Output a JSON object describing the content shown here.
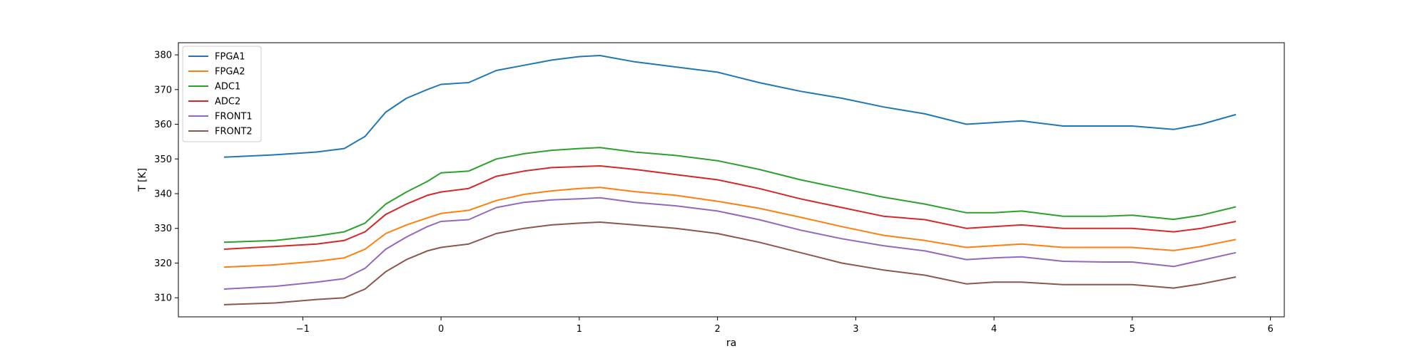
{
  "chart_data": {
    "type": "line",
    "title": "",
    "xlabel": "ra",
    "ylabel": "T [K]",
    "xlim": [
      -1.9,
      6.1
    ],
    "ylim": [
      304.5,
      383.5
    ],
    "xticks": [
      -1,
      0,
      1,
      2,
      3,
      4,
      5,
      6
    ],
    "xtick_labels": [
      "−1",
      "0",
      "1",
      "2",
      "3",
      "4",
      "5",
      "6"
    ],
    "yticks": [
      310,
      320,
      330,
      340,
      350,
      360,
      370,
      380
    ],
    "ytick_labels": [
      "310",
      "320",
      "330",
      "340",
      "350",
      "360",
      "370",
      "380"
    ],
    "grid": false,
    "legend_position": "upper-left",
    "x": [
      -1.57,
      -1.2,
      -0.9,
      -0.7,
      -0.55,
      -0.4,
      -0.25,
      -0.1,
      0,
      0.2,
      0.4,
      0.6,
      0.8,
      1.0,
      1.15,
      1.4,
      1.7,
      2.0,
      2.3,
      2.6,
      2.9,
      3.2,
      3.5,
      3.8,
      4.0,
      4.2,
      4.5,
      4.8,
      5.0,
      5.3,
      5.5,
      5.75
    ],
    "series": [
      {
        "name": "FPGA1",
        "color": "#1f77b4",
        "values": [
          350.5,
          351.2,
          352.0,
          353.0,
          356.5,
          363.5,
          367.5,
          370.0,
          371.5,
          372.0,
          375.5,
          377.0,
          378.5,
          379.5,
          379.8,
          378.0,
          376.5,
          375.0,
          372.0,
          369.5,
          367.5,
          365.0,
          363.0,
          360.0,
          360.5,
          361.0,
          359.5,
          359.5,
          359.5,
          358.5,
          360.0,
          362.8
        ]
      },
      {
        "name": "FPGA2",
        "color": "#ff7f0e",
        "values": [
          318.8,
          319.5,
          320.5,
          321.5,
          324.0,
          328.5,
          331.0,
          333.0,
          334.3,
          335.2,
          338.0,
          339.8,
          340.8,
          341.5,
          341.8,
          340.6,
          339.5,
          337.8,
          335.8,
          333.2,
          330.5,
          328.0,
          326.5,
          324.5,
          325.0,
          325.5,
          324.5,
          324.5,
          324.5,
          323.6,
          324.8,
          326.8
        ]
      },
      {
        "name": "ADC1",
        "color": "#2ca02c",
        "values": [
          326.0,
          326.5,
          327.8,
          329.0,
          331.5,
          337.0,
          340.5,
          343.5,
          346.0,
          346.5,
          350.0,
          351.5,
          352.5,
          353.0,
          353.3,
          352.0,
          351.0,
          349.5,
          347.0,
          344.0,
          341.5,
          339.0,
          337.0,
          334.5,
          334.5,
          335.0,
          333.5,
          333.5,
          333.8,
          332.6,
          333.8,
          336.2
        ]
      },
      {
        "name": "ADC2",
        "color": "#d62728",
        "values": [
          324.0,
          324.8,
          325.5,
          326.5,
          329.0,
          334.0,
          337.0,
          339.5,
          340.5,
          341.5,
          345.0,
          346.5,
          347.5,
          347.8,
          348.0,
          347.0,
          345.5,
          344.0,
          341.5,
          338.5,
          336.0,
          333.5,
          332.5,
          330.0,
          330.5,
          331.0,
          330.0,
          330.0,
          330.0,
          329.0,
          330.0,
          332.0
        ]
      },
      {
        "name": "FRONT1",
        "color": "#9467bd",
        "values": [
          312.5,
          313.3,
          314.5,
          315.5,
          318.5,
          324.0,
          327.5,
          330.5,
          332.0,
          332.5,
          336.0,
          337.5,
          338.2,
          338.5,
          338.8,
          337.5,
          336.5,
          335.0,
          332.5,
          329.5,
          327.0,
          325.0,
          323.5,
          321.0,
          321.5,
          321.8,
          320.5,
          320.3,
          320.3,
          319.0,
          320.8,
          323.0
        ]
      },
      {
        "name": "FRONT2",
        "color": "#8c564b",
        "values": [
          308.0,
          308.5,
          309.5,
          310.0,
          312.5,
          317.5,
          321.0,
          323.5,
          324.5,
          325.5,
          328.5,
          330.0,
          331.0,
          331.5,
          331.8,
          331.0,
          330.0,
          328.5,
          326.0,
          323.0,
          320.0,
          318.0,
          316.5,
          314.0,
          314.5,
          314.5,
          313.8,
          313.8,
          313.8,
          312.8,
          314.0,
          316.0
        ]
      }
    ]
  }
}
